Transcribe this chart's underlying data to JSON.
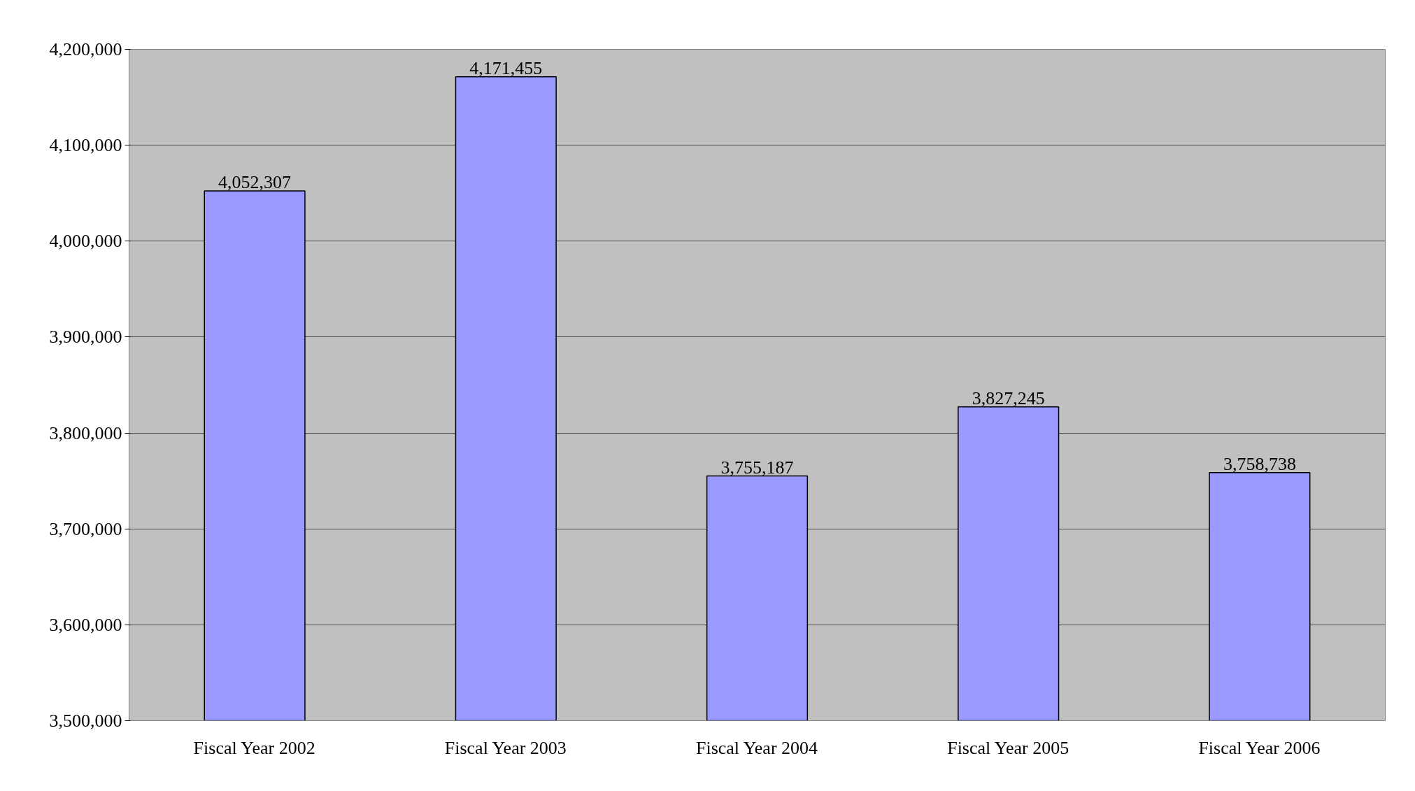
{
  "chart_data": {
    "type": "bar",
    "categories": [
      "Fiscal Year 2002",
      "Fiscal Year 2003",
      "Fiscal Year 2004",
      "Fiscal Year 2005",
      "Fiscal Year 2006"
    ],
    "values": [
      4052307,
      4171455,
      3755187,
      3827245,
      3758738
    ],
    "value_labels": [
      "4,052,307",
      "4,171,455",
      "3,755,187",
      "3,827,245",
      "3,758,738"
    ],
    "color": "#9999ff",
    "grid": "y",
    "ylim": [
      3500000,
      4200000
    ],
    "yticks": [
      {
        "value": 3500000,
        "label": "3,500,000"
      },
      {
        "value": 3600000,
        "label": "3,600,000"
      },
      {
        "value": 3700000,
        "label": "3,700,000"
      },
      {
        "value": 3800000,
        "label": "3,800,000"
      },
      {
        "value": 3900000,
        "label": "3,900,000"
      },
      {
        "value": 4000000,
        "label": "4,000,000"
      },
      {
        "value": 4100000,
        "label": "4,100,000"
      },
      {
        "value": 4200000,
        "label": "4,200,000"
      }
    ]
  }
}
